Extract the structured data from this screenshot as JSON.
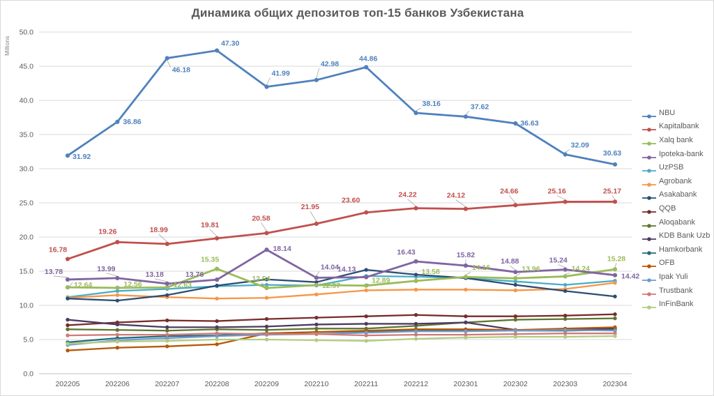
{
  "page": {
    "title": "Динамика общих депозитов топ-15 банков Узбекистана"
  },
  "chart_data": {
    "type": "line",
    "title": "Динамика общих депозитов топ-15 банков Узбекистана",
    "xlabel": "",
    "ylabel": "Millions",
    "ylim": [
      0,
      50
    ],
    "ytick_step": 5,
    "ytick_decimals": 1,
    "grid": true,
    "legend_position": "right",
    "categories": [
      "202205",
      "202206",
      "202207",
      "202208",
      "202209",
      "202210",
      "202211",
      "202212",
      "202301",
      "202302",
      "202303",
      "202304"
    ],
    "series": [
      {
        "name": "NBU",
        "color": "#4F81BD",
        "labeled": true,
        "values": [
          31.92,
          36.86,
          46.18,
          47.3,
          41.99,
          42.98,
          44.86,
          38.16,
          37.62,
          36.63,
          32.09,
          30.63
        ]
      },
      {
        "name": "Kapitalbank",
        "color": "#C0504D",
        "labeled": true,
        "values": [
          16.78,
          19.26,
          18.99,
          19.81,
          20.58,
          21.95,
          23.6,
          24.22,
          24.12,
          24.66,
          25.16,
          25.17
        ]
      },
      {
        "name": "Xalq bank",
        "color": "#9BBB59",
        "labeled": true,
        "values": [
          12.64,
          12.56,
          12.63,
          15.35,
          12.54,
          12.97,
          12.89,
          13.58,
          14.16,
          13.96,
          14.24,
          15.28
        ]
      },
      {
        "name": "Ipoteka-bank",
        "color": "#8064A2",
        "labeled": true,
        "values": [
          13.78,
          13.99,
          13.18,
          13.76,
          18.14,
          14.04,
          14.13,
          16.43,
          15.82,
          14.88,
          15.24,
          14.42
        ]
      },
      {
        "name": "UzPSB",
        "color": "#4BACC6",
        "labeled": false,
        "values": [
          11.2,
          12.1,
          12.4,
          12.8,
          13.0,
          12.9,
          14.3,
          14.2,
          14.0,
          13.5,
          13.0,
          13.6
        ]
      },
      {
        "name": "Agrobank",
        "color": "#F79646",
        "labeled": false,
        "values": [
          11.1,
          11.5,
          11.2,
          11.0,
          11.1,
          11.6,
          12.2,
          12.3,
          12.3,
          12.2,
          12.4,
          13.3
        ]
      },
      {
        "name": "Asakabank",
        "color": "#2C4D75",
        "labeled": false,
        "values": [
          11.0,
          10.7,
          11.5,
          12.9,
          13.8,
          13.4,
          15.2,
          14.5,
          14.0,
          13.0,
          12.1,
          11.3
        ]
      },
      {
        "name": "QQB",
        "color": "#772C2A",
        "labeled": false,
        "values": [
          7.1,
          7.5,
          7.8,
          7.7,
          8.0,
          8.2,
          8.4,
          8.6,
          8.4,
          8.4,
          8.5,
          8.7
        ]
      },
      {
        "name": "Aloqabank",
        "color": "#5F7530",
        "labeled": false,
        "values": [
          6.5,
          6.4,
          6.3,
          6.5,
          6.4,
          6.6,
          6.6,
          7.0,
          7.5,
          7.9,
          8.0,
          8.1
        ]
      },
      {
        "name": "KDB Bank Uzb",
        "color": "#4D3B62",
        "labeled": false,
        "values": [
          7.9,
          7.2,
          6.8,
          6.8,
          6.9,
          7.2,
          7.3,
          7.3,
          7.5,
          6.4,
          6.4,
          6.6
        ]
      },
      {
        "name": "Hamkorbank",
        "color": "#276A7C",
        "labeled": false,
        "values": [
          4.6,
          5.2,
          5.5,
          5.6,
          5.9,
          6.1,
          6.2,
          6.3,
          6.3,
          6.3,
          6.3,
          6.4
        ]
      },
      {
        "name": "OFB",
        "color": "#B65708",
        "labeled": false,
        "values": [
          3.4,
          3.8,
          4.0,
          4.3,
          5.9,
          6.1,
          6.3,
          6.5,
          6.5,
          6.4,
          6.6,
          6.8
        ]
      },
      {
        "name": "Ipak Yuli",
        "color": "#729ACA",
        "labeled": false,
        "values": [
          4.2,
          4.9,
          5.2,
          5.5,
          5.7,
          5.8,
          6.0,
          6.2,
          6.2,
          6.3,
          6.4,
          6.3
        ]
      },
      {
        "name": "Trustbank",
        "color": "#CF7B79",
        "labeled": false,
        "values": [
          5.6,
          5.7,
          5.7,
          5.9,
          5.8,
          5.8,
          5.6,
          5.7,
          5.7,
          5.8,
          5.9,
          5.9
        ]
      },
      {
        "name": "InFinBank",
        "color": "#B3CC82",
        "labeled": false,
        "values": [
          4.4,
          4.7,
          4.8,
          5.0,
          5.0,
          4.9,
          4.8,
          5.1,
          5.3,
          5.4,
          5.4,
          5.5
        ]
      }
    ]
  },
  "colors": {
    "title_text": "#595959",
    "axis_text": "#595959",
    "gridline": "#D9D9D9",
    "axis_line": "#BFBFBF",
    "leader_line": "#A6A6A6",
    "background": "#FFFFFF",
    "chart_border": "#D9D9D9"
  }
}
